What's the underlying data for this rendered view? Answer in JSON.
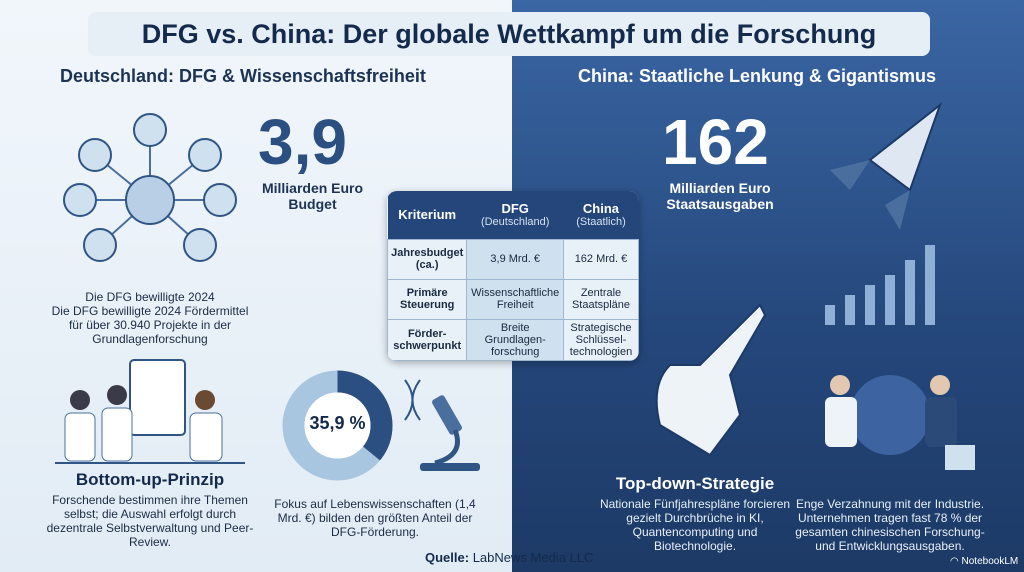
{
  "title": "DFG vs. China: Der globale Wettkampf um die Forschung",
  "left": {
    "heading": "Deutschland: DFG & Wissenschaftsfreiheit",
    "budget_value": "3,9",
    "budget_label_1": "Milliarden Euro",
    "budget_label_2": "Budget",
    "projects_text_1": "Die DFG bewilligte 2024",
    "projects_text_2": "Die DFG bewilligte 2024 Fördermittel für über 30.940 Projekte in der Grundlagenforschung",
    "principle_title": "Bottom-up-Prinzip",
    "principle_text": "Forschende bestimmen ihre Themen selbst; die Auswahl erfolgt durch dezentrale Selbstverwaltung und Peer-Review.",
    "donut_label": "35,9 %",
    "donut_percent": 35.9,
    "donut_text": "Fokus auf Lebenswissenschaften (1,4 Mrd. €) bilden den größten Anteil der DFG-Förderung."
  },
  "right": {
    "heading": "China: Staatliche Lenkung & Gigantismus",
    "budget_value": "162",
    "budget_label_1": "Milliarden Euro",
    "budget_label_2": "Staatsausgaben",
    "strategy_title": "Top-down-Strategie",
    "strategy_text": "Nationale Fünfjahrespläne forcieren gezielt Durchbrüche in KI, Quantencomputing und Biotechnologie.",
    "industry_text": "Enge Verzahnung mit der Industrie. Unternehmen tragen fast 78 % der gesamten chinesischen Forschung- und Entwicklungsausgaben."
  },
  "table": {
    "headers": [
      {
        "main": "Kriterium",
        "sub": ""
      },
      {
        "main": "DFG",
        "sub": "(Deutschland)"
      },
      {
        "main": "China",
        "sub": "(Staatlich)"
      }
    ],
    "rows": [
      [
        "Jahresbudget (ca.)",
        "3,9 Mrd. €",
        "162 Mrd. €"
      ],
      [
        "Primäre Steuerung",
        "Wissenschaftliche Freiheit",
        "Zentrale Staatspläne"
      ],
      [
        "Förder-schwerpunkt",
        "Breite Grundlagen-forschung",
        "Strategische Schlüssel-technologien"
      ]
    ]
  },
  "source_label": "Quelle:",
  "source_value": "LabNews Media LLC",
  "branding": "NotebookLM",
  "colors": {
    "dark_blue": "#24467a",
    "light_bg": "#e9f1f8",
    "title_text": "#142a4c"
  }
}
